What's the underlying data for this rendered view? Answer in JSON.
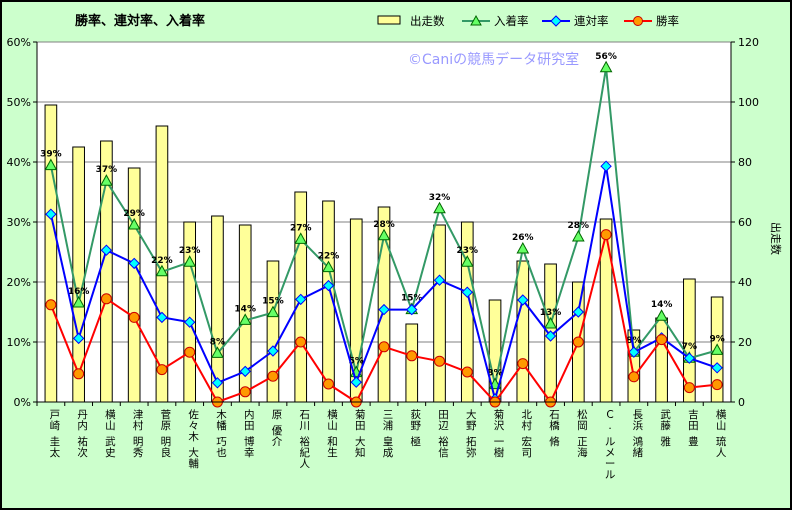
{
  "chart_data": {
    "type": "bar+line",
    "title": "勝率、連対率、入着率",
    "watermark": "©Caniの競馬データ研究室",
    "y_left": {
      "ticks": [
        "0%",
        "10%",
        "20%",
        "30%",
        "40%",
        "50%",
        "60%"
      ],
      "range": [
        0,
        60
      ],
      "unit": "%"
    },
    "y_right": {
      "ticks": [
        "0",
        "20",
        "40",
        "60",
        "80",
        "100",
        "120"
      ],
      "range": [
        0,
        120
      ],
      "label": "出走数"
    },
    "categories": [
      "戸崎 圭太",
      "丹内 祐次",
      "横山 武史",
      "津村 明秀",
      "菅原 明良",
      "佐々木 大輔",
      "木幡 巧也",
      "内田 博幸",
      "原 優介",
      "石川 裕紀人",
      "横山 和生",
      "菊田 大知",
      "三浦 皇成",
      "荻野 極",
      "田辺 裕信",
      "大野 拓弥",
      "菊沢 一樹",
      "北村 宏司",
      "石橋 脩",
      "松岡 正海",
      "C. ルメール",
      "長浜 鴻緒",
      "武藤 雅",
      "吉田 豊",
      "横山 琉人"
    ],
    "series": [
      {
        "name": "出走数",
        "kind": "bar",
        "axis": "right",
        "color": "#ffff99",
        "values": [
          99,
          85,
          87,
          78,
          92,
          60,
          62,
          59,
          47,
          70,
          67,
          61,
          65,
          26,
          59,
          60,
          34,
          47,
          46,
          40,
          61,
          24,
          28,
          41,
          35
        ]
      },
      {
        "name": "入着率",
        "kind": "line",
        "axis": "left",
        "color": "#339966",
        "marker": "triangle",
        "values": [
          39.4,
          16.5,
          36.8,
          29.5,
          21.7,
          23.3,
          8.1,
          13.6,
          14.9,
          27.1,
          22.4,
          4.9,
          27.7,
          15.4,
          32.2,
          23.3,
          2.9,
          25.5,
          13.0,
          27.5,
          55.7,
          8.3,
          14.3,
          7.3,
          8.6
        ],
        "labels": [
          "39%",
          "16%",
          "37%",
          "29%",
          "22%",
          "23%",
          "8%",
          "14%",
          "15%",
          "27%",
          "22%",
          "5%",
          "28%",
          "15%",
          "32%",
          "23%",
          "3%",
          "26%",
          "13%",
          "28%",
          "56%",
          "8%",
          "14%",
          "7%",
          "9%"
        ]
      },
      {
        "name": "連対率",
        "kind": "line",
        "axis": "left",
        "color": "#0000ff",
        "marker": "diamond",
        "values": [
          31.3,
          10.6,
          25.3,
          23.1,
          14.1,
          13.3,
          3.2,
          5.1,
          8.5,
          17.1,
          19.4,
          3.3,
          15.4,
          15.4,
          20.3,
          18.3,
          0.5,
          17.0,
          11.0,
          15.0,
          39.3,
          8.3,
          10.7,
          7.3,
          5.7
        ]
      },
      {
        "name": "勝率",
        "kind": "line",
        "axis": "left",
        "color": "#ff0000",
        "marker": "circle",
        "values": [
          16.2,
          4.7,
          17.2,
          14.1,
          5.4,
          8.3,
          0.0,
          1.7,
          4.3,
          10.0,
          3.0,
          0.0,
          9.2,
          7.7,
          6.8,
          5.0,
          0.0,
          6.4,
          0.0,
          10.0,
          27.9,
          4.2,
          10.4,
          2.4,
          2.9
        ]
      }
    ],
    "legend_position": "top-right"
  }
}
